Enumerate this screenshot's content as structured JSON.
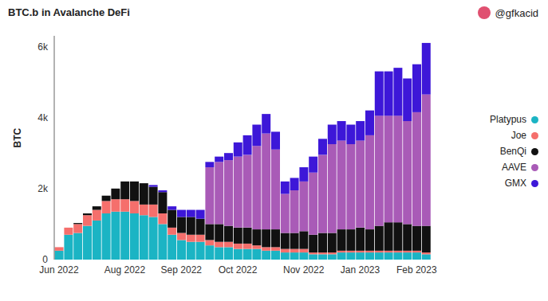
{
  "chart_data": {
    "type": "bar",
    "title": "BTC.b in Avalanche DeFi",
    "annotations": [
      "@gfkacid"
    ],
    "y_label": "BTC",
    "stacked": true,
    "grid": false,
    "legend": "right",
    "categories": [
      "Jun 2022",
      null,
      null,
      null,
      null,
      null,
      null,
      "Aug 2022",
      null,
      null,
      null,
      null,
      null,
      "Sep 2022",
      null,
      null,
      null,
      null,
      null,
      "Oct 2022",
      null,
      null,
      null,
      null,
      null,
      null,
      "Nov 2022",
      null,
      null,
      null,
      null,
      null,
      "Jan 2023",
      null,
      null,
      null,
      null,
      null,
      "Feb 2023",
      null
    ],
    "ylim": [
      0,
      6300
    ],
    "yticks": [
      0,
      {
        "value": 2000,
        "label": "2k"
      },
      {
        "value": 4000,
        "label": "4k"
      },
      {
        "value": 6000,
        "label": "6k"
      }
    ],
    "series": [
      {
        "name": "Platypus",
        "color": "#1bb4c4",
        "values": [
          250,
          700,
          750,
          950,
          1100,
          1300,
          1350,
          1350,
          1300,
          1250,
          1200,
          1000,
          700,
          550,
          500,
          500,
          400,
          350,
          350,
          300,
          300,
          300,
          250,
          250,
          200,
          200,
          200,
          150,
          150,
          150,
          200,
          200,
          200,
          200,
          200,
          200,
          200,
          200,
          200,
          150
        ]
      },
      {
        "name": "Joe",
        "color": "#f56f6c",
        "values": [
          100,
          200,
          250,
          300,
          300,
          350,
          350,
          350,
          350,
          300,
          350,
          300,
          200,
          200,
          200,
          200,
          150,
          150,
          150,
          150,
          150,
          100,
          100,
          100,
          100,
          100,
          100,
          50,
          50,
          50,
          50,
          50,
          50,
          50,
          50,
          50,
          50,
          50,
          50,
          50
        ]
      },
      {
        "name": "BenQi",
        "color": "#111111",
        "values": [
          0,
          0,
          30,
          50,
          100,
          150,
          300,
          500,
          550,
          600,
          500,
          600,
          500,
          450,
          500,
          450,
          450,
          500,
          450,
          450,
          450,
          450,
          500,
          500,
          450,
          450,
          500,
          500,
          550,
          550,
          600,
          600,
          650,
          600,
          700,
          800,
          800,
          750,
          700,
          750
        ]
      },
      {
        "name": "AAVE",
        "color": "#a95bb7",
        "values": [
          0,
          0,
          0,
          0,
          0,
          0,
          0,
          0,
          0,
          0,
          0,
          0,
          0,
          0,
          0,
          0,
          1600,
          1750,
          1850,
          2000,
          2050,
          2350,
          2700,
          2250,
          1100,
          1200,
          1400,
          1750,
          2200,
          2500,
          2500,
          2400,
          2450,
          2650,
          3100,
          3000,
          3000,
          2900,
          3200,
          3700
        ]
      },
      {
        "name": "GMX",
        "color": "#3d17d8",
        "values": [
          0,
          0,
          0,
          0,
          0,
          0,
          0,
          0,
          0,
          0,
          50,
          50,
          100,
          200,
          200,
          250,
          150,
          150,
          200,
          400,
          550,
          600,
          550,
          500,
          350,
          350,
          400,
          450,
          450,
          550,
          550,
          550,
          550,
          700,
          1250,
          1250,
          1350,
          1200,
          1350,
          1450
        ]
      }
    ]
  }
}
